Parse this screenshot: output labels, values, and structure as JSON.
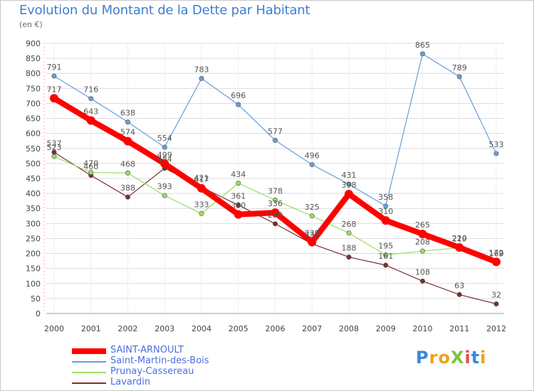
{
  "title": "Evolution du Montant de la Dette par Habitant",
  "unit": "(en €)",
  "logo": {
    "text": "ProXiti",
    "letters": [
      "P",
      "r",
      "o",
      "X",
      "i",
      "t",
      "i"
    ],
    "colors": [
      "#3a87d6",
      "#f0a020",
      "#f0a020",
      "#7cc23a",
      "#e05050",
      "#3a87d6",
      "#f0a020"
    ]
  },
  "colors": {
    "grid": "#dcdcdc",
    "axis_text": "#444444",
    "label_text": "#555555"
  },
  "chart_data": {
    "type": "line",
    "title": "Evolution du Montant de la Dette par Habitant",
    "ylabel": "(en €)",
    "xlabel": "",
    "x": [
      2000,
      2001,
      2002,
      2003,
      2004,
      2005,
      2006,
      2007,
      2008,
      2009,
      2010,
      2011,
      2012
    ],
    "ylim": [
      0,
      900
    ],
    "yticks": [
      0,
      50,
      100,
      150,
      200,
      250,
      300,
      350,
      400,
      450,
      500,
      550,
      600,
      650,
      700,
      750,
      800,
      850,
      900
    ],
    "grid": true,
    "legend": "bottom-left",
    "series": [
      {
        "name": "SAINT-ARNOULT",
        "color": "#ff0000",
        "values": [
          717,
          643,
          574,
          499,
          417,
          330,
          336,
          238,
          398,
          310,
          265,
          220,
          172
        ]
      },
      {
        "name": "Saint-Martin-des-Bois",
        "color": "#6a9ed8",
        "values": [
          791,
          716,
          638,
          554,
          783,
          696,
          577,
          496,
          431,
          358,
          865,
          789,
          533
        ]
      },
      {
        "name": "Prunay-Cassereau",
        "color": "#99dd66",
        "values": [
          523,
          470,
          468,
          393,
          333,
          434,
          378,
          325,
          268,
          195,
          208,
          219,
          169
        ]
      },
      {
        "name": "Lavardin",
        "color": "#7a3030",
        "values": [
          537,
          460,
          388,
          484,
          421,
          361,
          299,
          232,
          188,
          161,
          108,
          63,
          32
        ]
      }
    ]
  }
}
